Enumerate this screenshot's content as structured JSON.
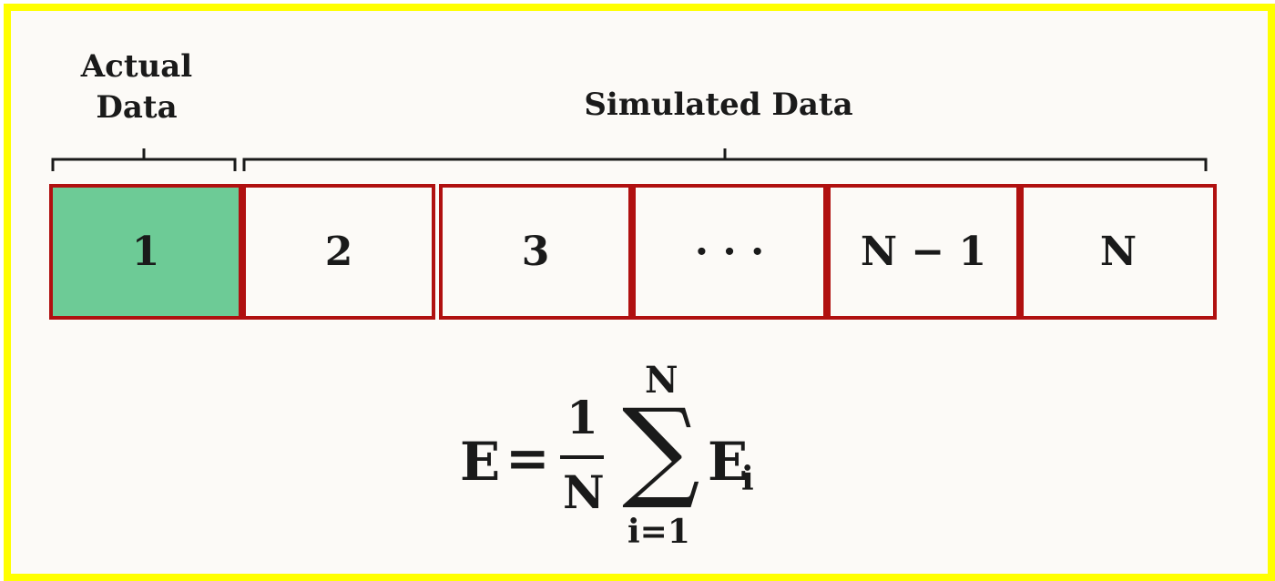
{
  "labels": {
    "actual_line1": "Actual",
    "actual_line2": "Data",
    "simulated": "Simulated Data"
  },
  "cells": [
    {
      "label": "1",
      "type": "actual"
    },
    {
      "label": "2",
      "type": "simulated"
    },
    {
      "label": "3",
      "type": "simulated"
    },
    {
      "label": "· · ·",
      "type": "simulated"
    },
    {
      "label": "N − 1",
      "type": "simulated"
    },
    {
      "label": "N",
      "type": "simulated"
    }
  ],
  "formula": {
    "lhs": "E",
    "equals": "=",
    "numerator": "1",
    "denominator": "N",
    "sum_upper": "N",
    "sum_symbol": "∑",
    "sum_lower": "i=1",
    "term": "E",
    "term_subscript": "i"
  },
  "colors": {
    "frame": "#ffff00",
    "cell_border": "#b01010",
    "actual_fill": "#6dcb96"
  }
}
